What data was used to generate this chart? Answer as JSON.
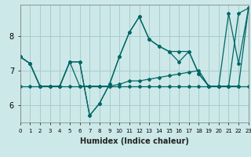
{
  "xlabel": "Humidex (Indice chaleur)",
  "background_color": "#cce8e8",
  "grid_color": "#aacccc",
  "line_color": "#006666",
  "x_values": [
    0,
    1,
    2,
    3,
    4,
    5,
    6,
    7,
    8,
    9,
    10,
    11,
    12,
    13,
    14,
    15,
    16,
    17,
    18,
    19,
    20,
    21,
    22,
    23
  ],
  "series": [
    [
      7.4,
      7.2,
      6.55,
      6.55,
      6.55,
      7.25,
      7.25,
      5.7,
      6.05,
      6.6,
      7.4,
      8.1,
      8.55,
      7.9,
      7.7,
      7.55,
      7.55,
      7.55,
      6.9,
      6.55,
      6.55,
      6.55,
      8.65,
      8.8
    ],
    [
      7.4,
      7.2,
      6.55,
      6.55,
      6.55,
      7.25,
      6.55,
      6.55,
      6.55,
      6.55,
      6.6,
      6.7,
      6.7,
      6.75,
      6.8,
      6.85,
      6.9,
      6.95,
      7.0,
      6.55,
      6.55,
      6.55,
      6.55,
      8.8
    ],
    [
      7.4,
      7.2,
      6.55,
      6.55,
      6.55,
      7.25,
      7.25,
      5.7,
      6.05,
      6.6,
      7.4,
      8.1,
      8.55,
      7.9,
      7.7,
      7.55,
      7.25,
      7.55,
      6.9,
      6.55,
      6.55,
      8.65,
      7.2,
      8.8
    ],
    [
      6.55,
      6.55,
      6.55,
      6.55,
      6.55,
      6.55,
      6.55,
      6.55,
      6.55,
      6.55,
      6.55,
      6.55,
      6.55,
      6.55,
      6.55,
      6.55,
      6.55,
      6.55,
      6.55,
      6.55,
      6.55,
      6.55,
      6.55,
      6.55
    ]
  ],
  "xlim": [
    0,
    23
  ],
  "ylim": [
    5.5,
    8.9
  ],
  "yticks": [
    6,
    7,
    8
  ],
  "xticks": [
    0,
    1,
    2,
    3,
    4,
    5,
    6,
    7,
    8,
    9,
    10,
    11,
    12,
    13,
    14,
    15,
    16,
    17,
    18,
    19,
    20,
    21,
    22,
    23
  ],
  "xlabel_fontsize": 7,
  "ytick_fontsize": 7,
  "xtick_fontsize": 5
}
